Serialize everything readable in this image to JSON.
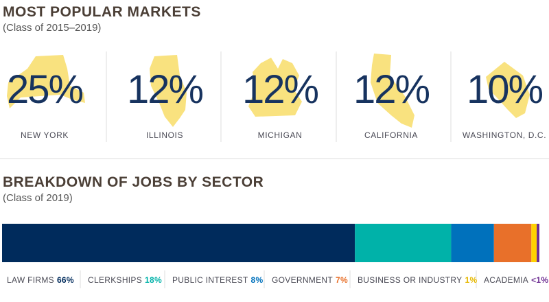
{
  "markets": {
    "title": "MOST POPULAR MARKETS",
    "subtitle": "(Class of 2015–2019)",
    "items": [
      {
        "value": "25%",
        "label": "NEW YORK"
      },
      {
        "value": "12%",
        "label": "ILLINOIS"
      },
      {
        "value": "12%",
        "label": "MICHIGAN"
      },
      {
        "value": "12%",
        "label": "CALIFORNIA"
      },
      {
        "value": "10%",
        "label": "WASHINGTON, D.C."
      }
    ]
  },
  "chart_data": {
    "type": "stacked-bar",
    "title": "BREAKDOWN OF JOBS BY SECTOR",
    "subtitle": "(Class of 2019)",
    "series": [
      {
        "name": "LAW FIRMS",
        "color": "#002b5c",
        "values": [
          66
        ],
        "value_labels": [
          "66%"
        ]
      },
      {
        "name": "CLERKSHIPS",
        "color": "#00b2a9",
        "values": [
          18
        ],
        "value_labels": [
          "18%"
        ]
      },
      {
        "name": "PUBLIC INTEREST",
        "color": "#0071bc",
        "values": [
          8
        ],
        "value_labels": [
          "8%"
        ]
      },
      {
        "name": "GOVERNMENT",
        "color": "#e8702a",
        "values": [
          7
        ],
        "value_labels": [
          "7%"
        ]
      },
      {
        "name": "BUSINESS OR INDUSTRY",
        "color": "#ffd100",
        "values": [
          1
        ],
        "value_labels": [
          "1%"
        ]
      },
      {
        "name": "ACADEMIA",
        "color": "#6c2c91",
        "values": [
          0.5
        ],
        "value_labels": [
          "<1%"
        ]
      }
    ]
  }
}
